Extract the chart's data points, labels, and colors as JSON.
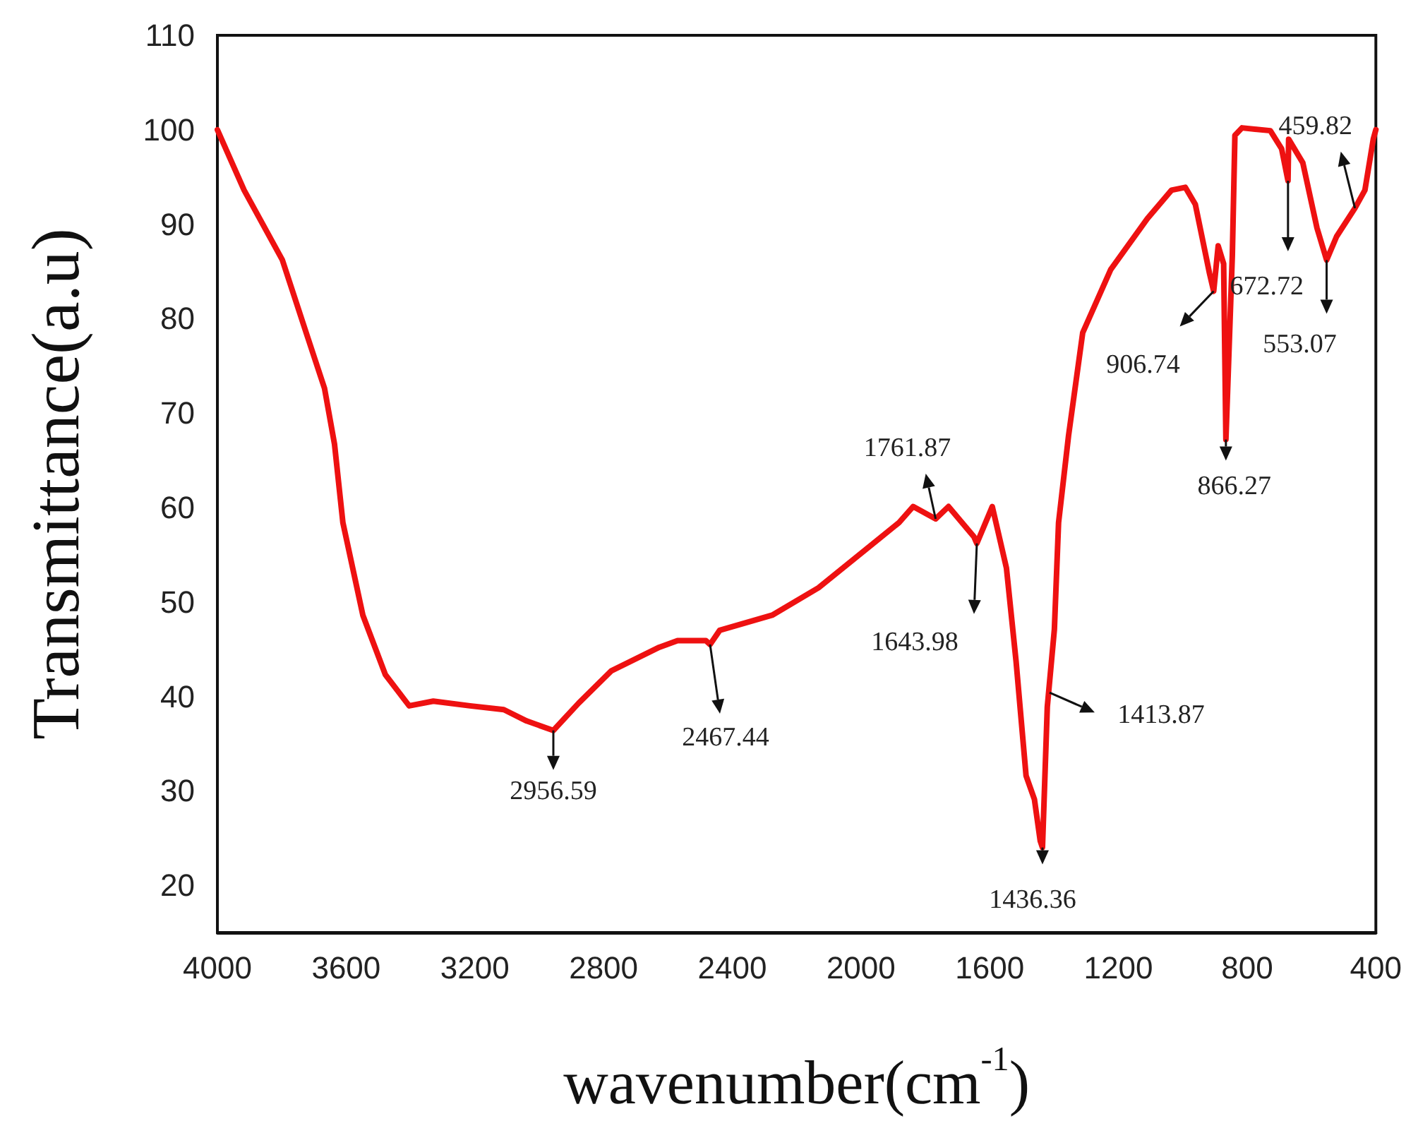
{
  "chart_data": {
    "type": "line",
    "xlabel": "wavenumber(cm$^{-1}$)",
    "ylabel": "Transmittance(a.u)",
    "xlim": [
      4000,
      400
    ],
    "xticks": [
      4000,
      3600,
      3200,
      2800,
      2400,
      2000,
      1600,
      1200,
      800,
      400
    ],
    "ylim": [
      15,
      110
    ],
    "yticks": [
      20,
      30,
      40,
      50,
      60,
      70,
      80,
      90,
      100,
      110
    ],
    "grid": false,
    "marker": "none",
    "line_style": "solid",
    "x": [
      4000,
      3917,
      3798,
      3724,
      3667,
      3636,
      3610,
      3548,
      3478,
      3404,
      3329,
      3215,
      3110,
      3039,
      2956,
      2877,
      2776,
      2627,
      2570,
      2482,
      2469,
      2439,
      2276,
      2132,
      1987,
      1882,
      1838,
      1768,
      1728,
      1649,
      1640,
      1592,
      1548,
      1518,
      1487,
      1461,
      1443,
      1436,
      1421,
      1399,
      1386,
      1355,
      1311,
      1224,
      1110,
      1035,
      992,
      961,
      917,
      904,
      890,
      873,
      866,
      846,
      838,
      816,
      728,
      693,
      673,
      671,
      627,
      583,
      553,
      522,
      465,
      434,
      408,
      400
    ],
    "series": [
      {
        "color": "#ee1111",
        "values": [
          100,
          93.6,
          86.2,
          78.5,
          72.6,
          66.7,
          58.4,
          48.6,
          42.3,
          39.0,
          39.5,
          39.0,
          38.6,
          37.4,
          36.4,
          39.3,
          42.7,
          45.2,
          45.9,
          45.9,
          45.5,
          47.0,
          48.6,
          51.5,
          55.5,
          58.4,
          60.1,
          58.8,
          60.1,
          56.9,
          56.2,
          60.1,
          53.6,
          43.7,
          31.6,
          29.1,
          24.7,
          24.0,
          38.9,
          47.1,
          58.4,
          67.6,
          78.5,
          85.2,
          90.6,
          93.6,
          93.9,
          92.1,
          84.8,
          82.9,
          87.7,
          85.8,
          67.2,
          86.7,
          99.4,
          100.2,
          99.9,
          98.0,
          94.6,
          99.0,
          96.5,
          89.6,
          86.2,
          88.7,
          91.7,
          93.6,
          99,
          100
        ]
      }
    ],
    "annotations": [
      {
        "text": "2956.59",
        "x": 2956,
        "y": 36.4
      },
      {
        "text": "2467.44",
        "x": 2469,
        "y": 45.5
      },
      {
        "text": "1761.87",
        "x": 1768,
        "y": 58.8
      },
      {
        "text": "1643.98",
        "x": 1640,
        "y": 56.2
      },
      {
        "text": "1436.36",
        "x": 1436,
        "y": 24.0
      },
      {
        "text": "1413.87",
        "x": 1414,
        "y": 40.4
      },
      {
        "text": "906.74",
        "x": 904,
        "y": 82.9
      },
      {
        "text": "866.27",
        "x": 866,
        "y": 67.2
      },
      {
        "text": "672.72",
        "x": 673,
        "y": 94.6
      },
      {
        "text": "553.07",
        "x": 553,
        "y": 86.2
      },
      {
        "text": "459.82",
        "x": 465,
        "y": 91.7
      }
    ]
  }
}
